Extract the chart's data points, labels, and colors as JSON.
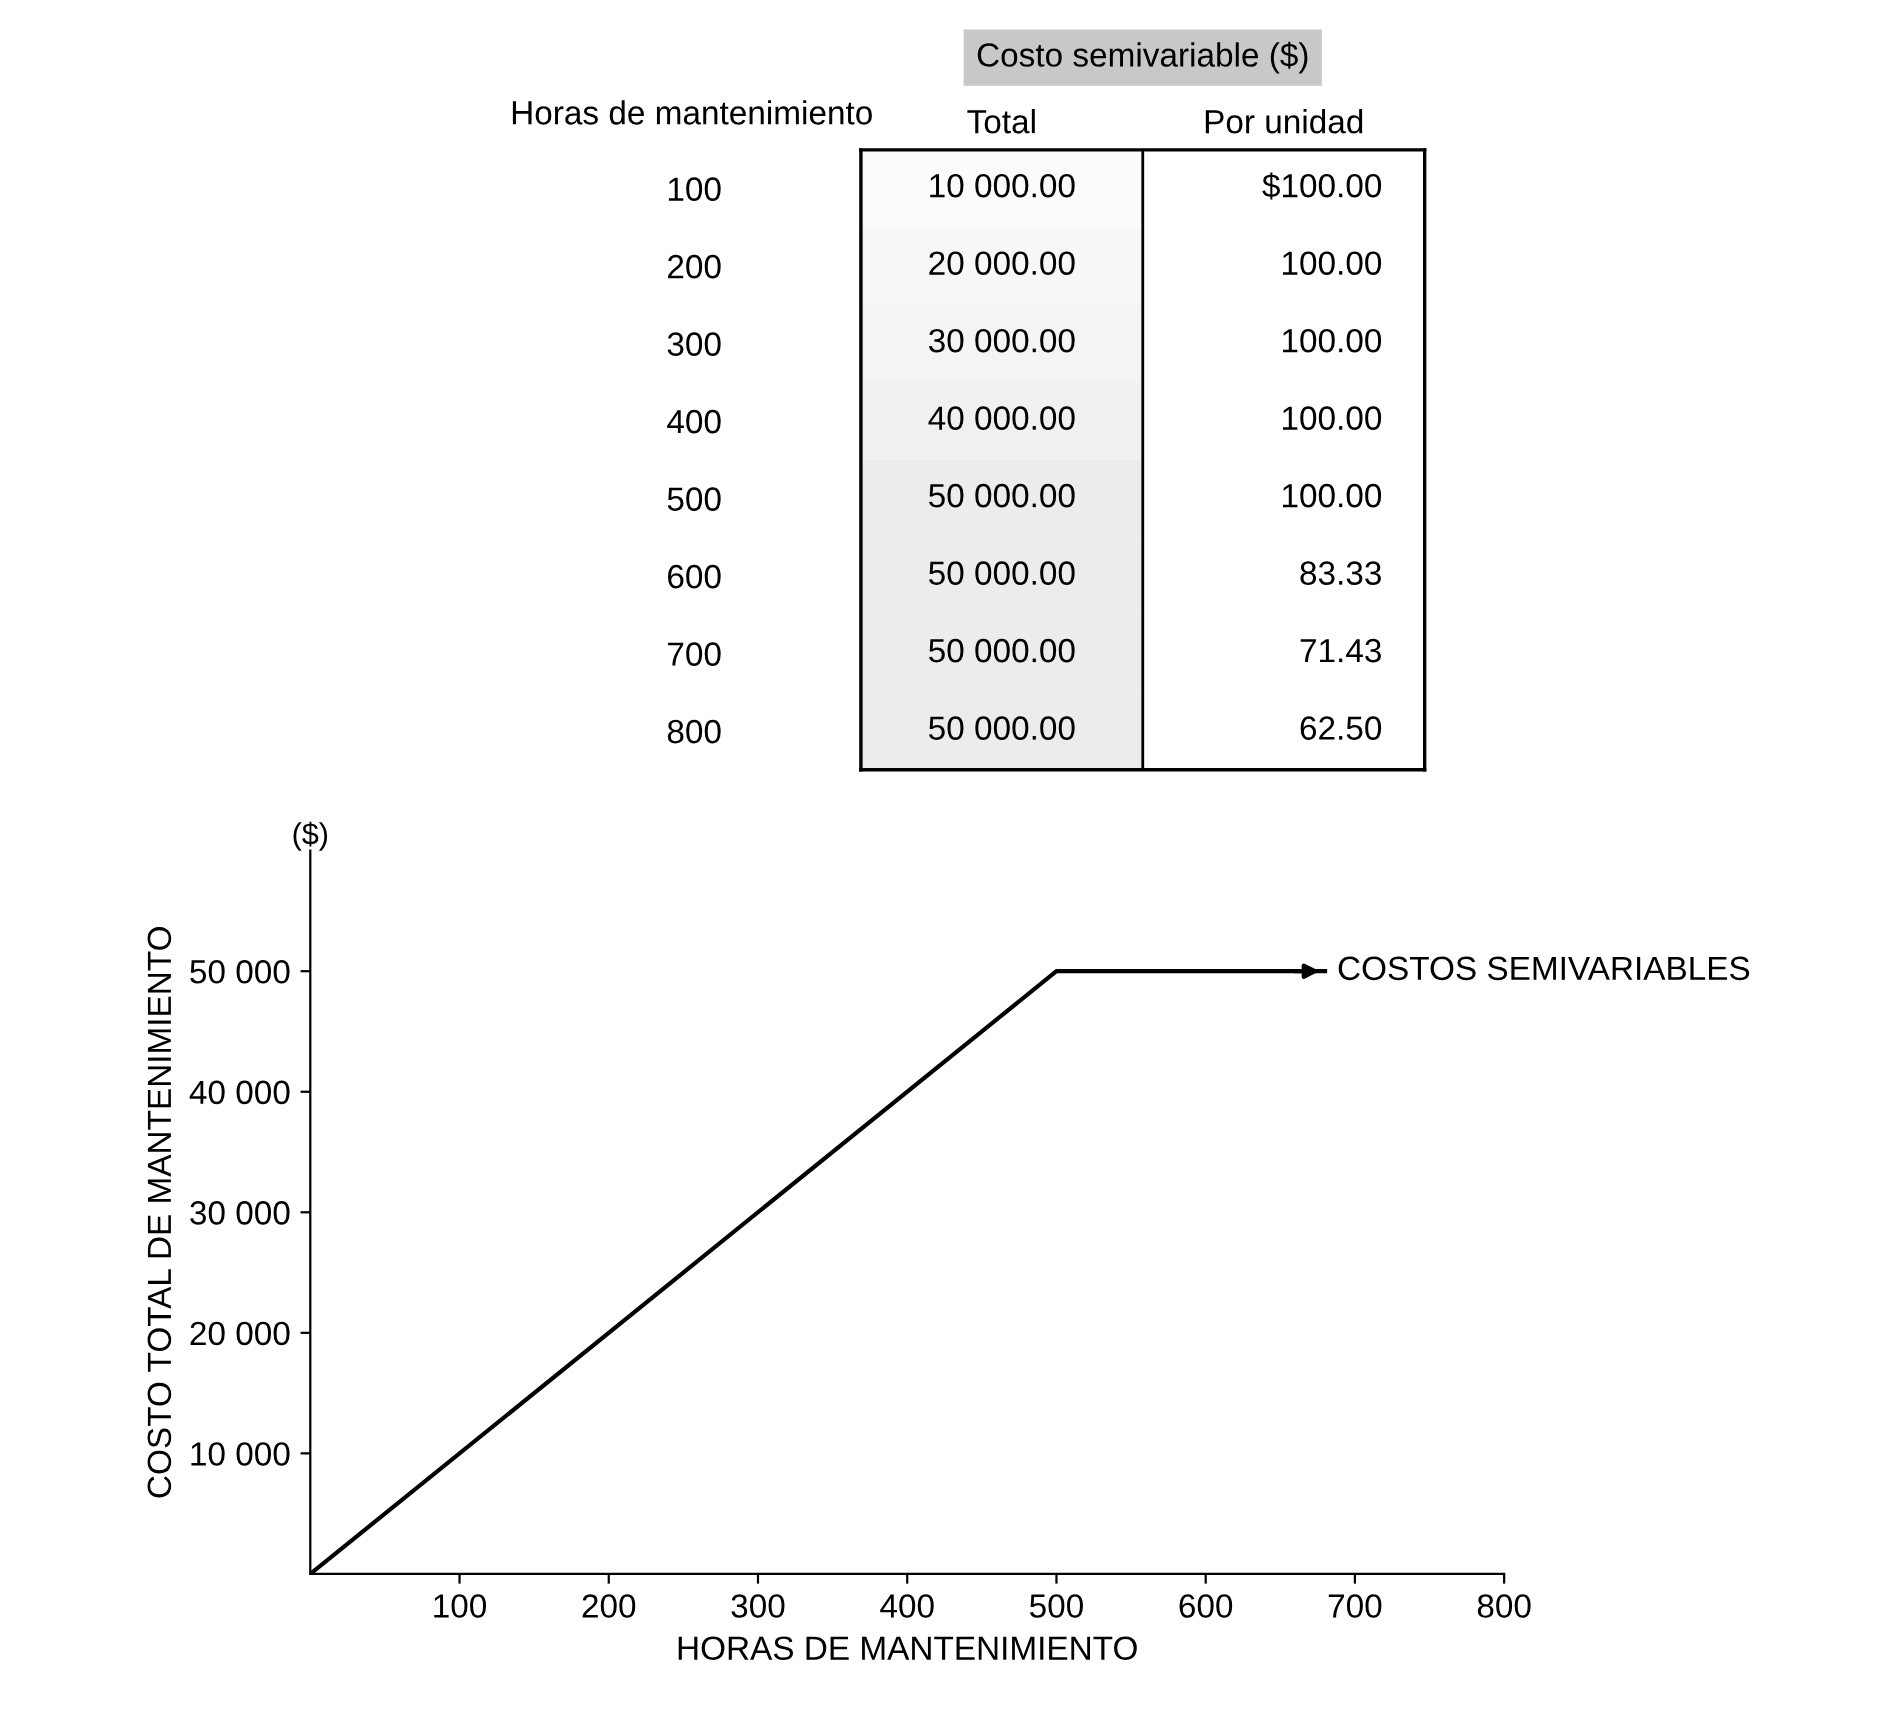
{
  "chart_data": [
    {
      "type": "heatmap",
      "title": "Costo semivariable ($)",
      "ylabel": "Horas de mantenimiento",
      "categories": [
        "Total",
        "Por unidad"
      ],
      "y_categories": [
        "100",
        "200",
        "300",
        "400",
        "500",
        "600",
        "700",
        "800"
      ],
      "cells": [
        [
          10000,
          100
        ],
        [
          20000,
          100
        ],
        [
          30000,
          100
        ],
        [
          40000,
          100
        ],
        [
          50000,
          100
        ],
        [
          50000,
          83.33
        ],
        [
          50000,
          71.43
        ],
        [
          50000,
          62.5
        ]
      ],
      "cell_labels": [
        [
          "10 000.00",
          "$100.00"
        ],
        [
          "20 000.00",
          "100.00"
        ],
        [
          "30 000.00",
          "100.00"
        ],
        [
          "40 000.00",
          "100.00"
        ],
        [
          "50 000.00",
          "100.00"
        ],
        [
          "50 000.00",
          "83.33"
        ],
        [
          "50 000.00",
          "71.43"
        ],
        [
          "50 000.00",
          "62.50"
        ]
      ]
    },
    {
      "type": "line",
      "xlabel": "HORAS DE MANTENIMIENTO",
      "ylabel": "COSTO TOTAL DE MANTENIMIENTO",
      "annotations": [
        "($)",
        {
          "text": "COSTOS SEMIVARIABLES",
          "x": 680,
          "y": 50000
        }
      ],
      "x": [
        0,
        500,
        680
      ],
      "series": [
        {
          "color": "#000000",
          "values": [
            0,
            50000,
            50000
          ]
        }
      ],
      "xlim": [
        0,
        800
      ],
      "xticks": [
        100,
        200,
        300,
        400,
        500,
        600,
        700,
        800
      ],
      "ylim": [
        0,
        60000
      ],
      "yticks": [
        {
          "value": 10000,
          "label": "10 000"
        },
        {
          "value": 20000,
          "label": "20 000"
        },
        {
          "value": 30000,
          "label": "30 000"
        },
        {
          "value": 40000,
          "label": "40 000"
        },
        {
          "value": 50000,
          "label": "50 000"
        }
      ],
      "grid": false,
      "legend": false,
      "marker": "none",
      "line_style": "solid"
    }
  ]
}
